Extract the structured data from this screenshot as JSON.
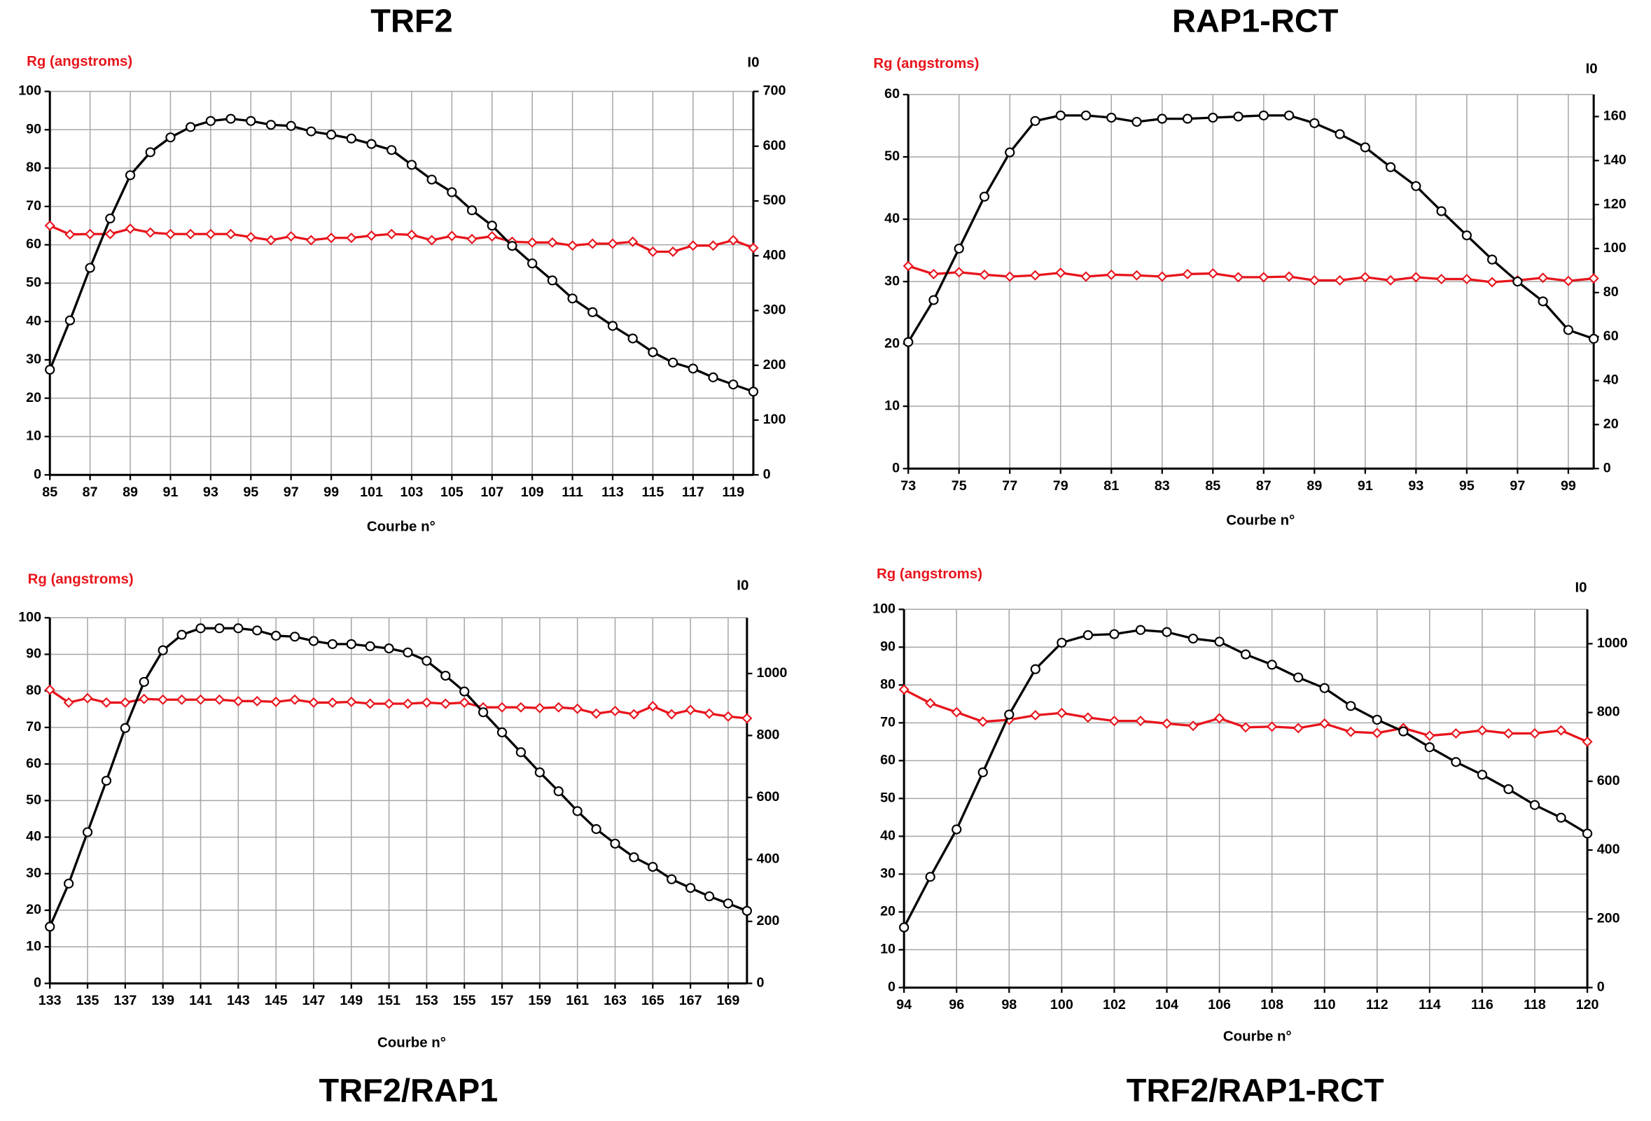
{
  "chart_data": [
    {
      "type": "line",
      "title": "TRF2",
      "ylabel": "Rg (angstroms)",
      "y2label": "I0",
      "xlabel": "Courbe n°",
      "x": [
        85,
        86,
        87,
        88,
        89,
        90,
        91,
        92,
        93,
        94,
        95,
        96,
        97,
        98,
        99,
        100,
        101,
        102,
        103,
        104,
        105,
        106,
        107,
        108,
        109,
        110,
        111,
        112,
        113,
        114,
        115,
        116,
        117,
        118,
        119,
        120
      ],
      "xlim": [
        85,
        120
      ],
      "xticks": [
        85,
        87,
        89,
        91,
        93,
        95,
        97,
        99,
        101,
        103,
        105,
        107,
        109,
        111,
        113,
        115,
        117,
        119
      ],
      "ylim": [
        0,
        100
      ],
      "yticks": [
        0,
        10,
        20,
        30,
        40,
        50,
        60,
        70,
        80,
        90,
        100
      ],
      "y2lim": [
        0,
        700
      ],
      "y2ticks": [
        0,
        100,
        200,
        300,
        400,
        500,
        600,
        700
      ],
      "grid": true,
      "series": [
        {
          "color": "#e8141c",
          "marker": "diamond",
          "values": [
            65,
            62.7,
            62.8,
            62.8,
            64.2,
            63.2,
            62.8,
            62.8,
            62.8,
            62.8,
            62,
            61.2,
            62.2,
            61.2,
            61.8,
            61.8,
            62.4,
            62.8,
            62.6,
            61.2,
            62.3,
            61.5,
            62.2,
            60.8,
            60.6,
            60.6,
            59.8,
            60.3,
            60.3,
            60.8,
            58.2,
            58.2,
            59.8,
            59.8,
            61.2,
            59.2
          ]
        },
        {
          "color": "#000000",
          "marker": "circle",
          "axis": "y2",
          "values": [
            192,
            282,
            378,
            468,
            547,
            589,
            616,
            635,
            646,
            650,
            646,
            639,
            637,
            627,
            621,
            614,
            604,
            593,
            566,
            539,
            516,
            483,
            455,
            418,
            386,
            355,
            322,
            297,
            272,
            249,
            224,
            205,
            194,
            178,
            165,
            152
          ]
        }
      ]
    },
    {
      "type": "line",
      "title": "RAP1-RCT",
      "ylabel": "Rg (angstroms)",
      "y2label": "I0",
      "xlabel": "Courbe n°",
      "x": [
        73,
        74,
        75,
        76,
        77,
        78,
        79,
        80,
        81,
        82,
        83,
        84,
        85,
        86,
        87,
        88,
        89,
        90,
        91,
        92,
        93,
        94,
        95,
        96,
        97,
        98,
        99,
        100
      ],
      "xlim": [
        73,
        100
      ],
      "xticks": [
        73,
        75,
        77,
        79,
        81,
        83,
        85,
        87,
        89,
        91,
        93,
        95,
        97,
        99
      ],
      "ylim": [
        0,
        60
      ],
      "yticks": [
        0,
        10,
        20,
        30,
        40,
        50,
        60
      ],
      "y2lim": [
        0,
        170
      ],
      "y2ticks": [
        0,
        20,
        40,
        60,
        80,
        100,
        120,
        140,
        160
      ],
      "grid": true,
      "series": [
        {
          "color": "#e8141c",
          "marker": "diamond",
          "values": [
            32.5,
            31.2,
            31.5,
            31.1,
            30.8,
            31,
            31.4,
            30.8,
            31.1,
            31,
            30.8,
            31.2,
            31.3,
            30.7,
            30.7,
            30.8,
            30.2,
            30.2,
            30.7,
            30.2,
            30.7,
            30.4,
            30.4,
            29.9,
            30.2,
            30.6,
            30.1,
            30.5
          ]
        },
        {
          "color": "#000000",
          "marker": "circle",
          "axis": "y2",
          "values": [
            57.5,
            76.6,
            100,
            123.6,
            143.7,
            158,
            160.5,
            160.5,
            159.5,
            157.6,
            159,
            159,
            159.5,
            160,
            160.5,
            160.5,
            157,
            152,
            146,
            137,
            128.4,
            117,
            106,
            95,
            85,
            76,
            63,
            59
          ]
        }
      ]
    },
    {
      "type": "line",
      "title": "TRF2/RAP1",
      "ylabel": "Rg (angstroms)",
      "y2label": "I0",
      "xlabel": "Courbe n°",
      "x": [
        133,
        134,
        135,
        136,
        137,
        138,
        139,
        140,
        141,
        142,
        143,
        144,
        145,
        146,
        147,
        148,
        149,
        150,
        151,
        152,
        153,
        154,
        155,
        156,
        157,
        158,
        159,
        160,
        161,
        162,
        163,
        164,
        165,
        166,
        167,
        168,
        169,
        170
      ],
      "xlim": [
        133,
        170
      ],
      "xticks": [
        133,
        135,
        137,
        139,
        141,
        143,
        145,
        147,
        149,
        151,
        153,
        155,
        157,
        159,
        161,
        163,
        165,
        167,
        169
      ],
      "ylim": [
        0,
        100
      ],
      "yticks": [
        0,
        10,
        20,
        30,
        40,
        50,
        60,
        70,
        80,
        90,
        100
      ],
      "y2lim": [
        0,
        1180
      ],
      "y2ticks": [
        0,
        200,
        400,
        600,
        800,
        1000
      ],
      "grid": true,
      "series": [
        {
          "color": "#e8141c",
          "marker": "diamond",
          "values": [
            80.3,
            76.8,
            78,
            76.8,
            76.8,
            77.8,
            77.6,
            77.6,
            77.6,
            77.6,
            77.2,
            77.2,
            77,
            77.6,
            76.8,
            76.8,
            77,
            76.5,
            76.5,
            76.5,
            76.8,
            76.5,
            76.8,
            75.5,
            75.5,
            75.5,
            75.3,
            75.5,
            75.1,
            73.8,
            74.5,
            73.6,
            75.8,
            73.6,
            74.8,
            73.8,
            73,
            72.5
          ]
        },
        {
          "color": "#000000",
          "marker": "circle",
          "axis": "y2",
          "values": [
            183,
            322,
            488,
            654,
            824,
            973,
            1075,
            1125,
            1146,
            1146,
            1146,
            1139,
            1122,
            1119,
            1105,
            1095,
            1095,
            1088,
            1081,
            1068,
            1041,
            993,
            942,
            875,
            810,
            746,
            681,
            620,
            556,
            498,
            451,
            407,
            376,
            336,
            308,
            281,
            258,
            234
          ]
        }
      ]
    },
    {
      "type": "line",
      "title": "TRF2/RAP1-RCT",
      "ylabel": "Rg (angstroms)",
      "y2label": "I0",
      "xlabel": "Courbe n°",
      "x": [
        94,
        95,
        96,
        97,
        98,
        99,
        100,
        101,
        102,
        103,
        104,
        105,
        106,
        107,
        108,
        109,
        110,
        111,
        112,
        113,
        114,
        115,
        116,
        117,
        118,
        119,
        120
      ],
      "xlim": [
        94,
        120
      ],
      "xticks": [
        94,
        96,
        98,
        100,
        102,
        104,
        106,
        108,
        110,
        112,
        114,
        116,
        118,
        120
      ],
      "ylim": [
        0,
        100
      ],
      "yticks": [
        0,
        10,
        20,
        30,
        40,
        50,
        60,
        70,
        80,
        90,
        100
      ],
      "y2lim": [
        0,
        1100
      ],
      "y2ticks": [
        0,
        200,
        400,
        600,
        800,
        1000
      ],
      "grid": true,
      "series": [
        {
          "color": "#e8141c",
          "marker": "diamond",
          "values": [
            78.8,
            75.2,
            72.8,
            70.3,
            70.8,
            72,
            72.6,
            71.4,
            70.5,
            70.5,
            69.8,
            69.2,
            71.2,
            68.8,
            69,
            68.6,
            69.8,
            67.6,
            67.3,
            68.6,
            66.6,
            67.2,
            68,
            67.2,
            67.2,
            68,
            65
          ]
        },
        {
          "color": "#000000",
          "marker": "circle",
          "axis": "y2",
          "values": [
            175,
            322,
            460,
            626,
            794,
            926,
            1003,
            1025,
            1028,
            1040,
            1034,
            1015,
            1006,
            969,
            939,
            902,
            871,
            819,
            779,
            745,
            699,
            656,
            619,
            577,
            531,
            494,
            448
          ]
        }
      ]
    }
  ]
}
